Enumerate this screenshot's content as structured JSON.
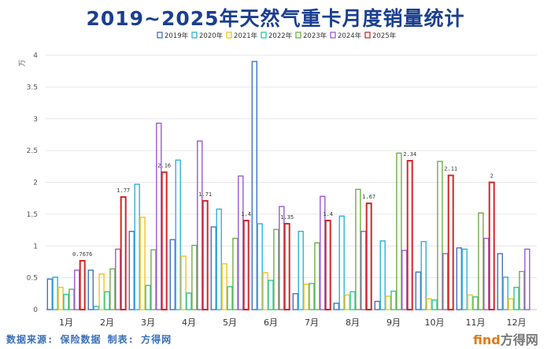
{
  "chart_data": {
    "type": "bar",
    "title": "2019~2025年天然气重卡月度销量统计",
    "ylabel": "万",
    "ylim": [
      0,
      4
    ],
    "yticks": [
      0,
      0.5,
      1,
      1.5,
      2,
      2.5,
      3,
      3.5,
      4
    ],
    "ytick_labels": [
      "0",
      "0.5",
      "1",
      "1.5",
      "2",
      "2.5",
      "3",
      "3.5",
      "4"
    ],
    "grid": true,
    "legend_position": "top",
    "categories": [
      "1月",
      "2月",
      "3月",
      "4月",
      "5月",
      "6月",
      "7月",
      "8月",
      "9月",
      "10月",
      "11月",
      "12月"
    ],
    "series": [
      {
        "name": "2019年",
        "color": "#4472c4",
        "values": [
          0.48,
          0.62,
          1.23,
          1.1,
          1.3,
          3.9,
          0.25,
          0.1,
          0.13,
          0.59,
          0.97,
          0.88
        ]
      },
      {
        "name": "2020年",
        "color": "#2bb3d9",
        "values": [
          0.51,
          0.05,
          1.97,
          2.35,
          1.58,
          1.35,
          1.23,
          1.47,
          1.08,
          1.07,
          0.95,
          0.51
        ]
      },
      {
        "name": "2021年",
        "color": "#f5c21c",
        "values": [
          0.35,
          0.56,
          1.45,
          0.84,
          0.72,
          0.58,
          0.4,
          0.23,
          0.21,
          0.17,
          0.23,
          0.17
        ]
      },
      {
        "name": "2022年",
        "color": "#27c99a",
        "values": [
          0.24,
          0.28,
          0.38,
          0.26,
          0.36,
          0.46,
          0.41,
          0.28,
          0.29,
          0.15,
          0.2,
          0.35
        ]
      },
      {
        "name": "2023年",
        "color": "#70ad47",
        "values": [
          0.32,
          0.64,
          0.94,
          1.01,
          1.12,
          1.26,
          1.05,
          1.89,
          2.46,
          2.33,
          1.52,
          0.6
        ]
      },
      {
        "name": "2024年",
        "color": "#9b59d6",
        "values": [
          0.62,
          0.95,
          2.93,
          2.65,
          2.1,
          1.62,
          1.78,
          1.23,
          0.93,
          0.88,
          1.12,
          0.95
        ]
      },
      {
        "name": "2025年",
        "color": "#d02828",
        "values": [
          0.7676,
          1.77,
          2.16,
          1.71,
          1.4,
          1.35,
          1.4,
          1.67,
          2.34,
          2.11,
          2,
          null
        ]
      }
    ],
    "data_labels": [
      "0.7676",
      "1.77",
      "2.16",
      "1.71",
      "1.4",
      "1.35",
      "1.4",
      "1.67",
      "2.34",
      "2.11",
      "2"
    ],
    "label_series": "2025年"
  },
  "footer": {
    "source": "数据来源: 保险数据  制表: 方得网",
    "watermark_brand": "find",
    "watermark_text": "方得网"
  }
}
